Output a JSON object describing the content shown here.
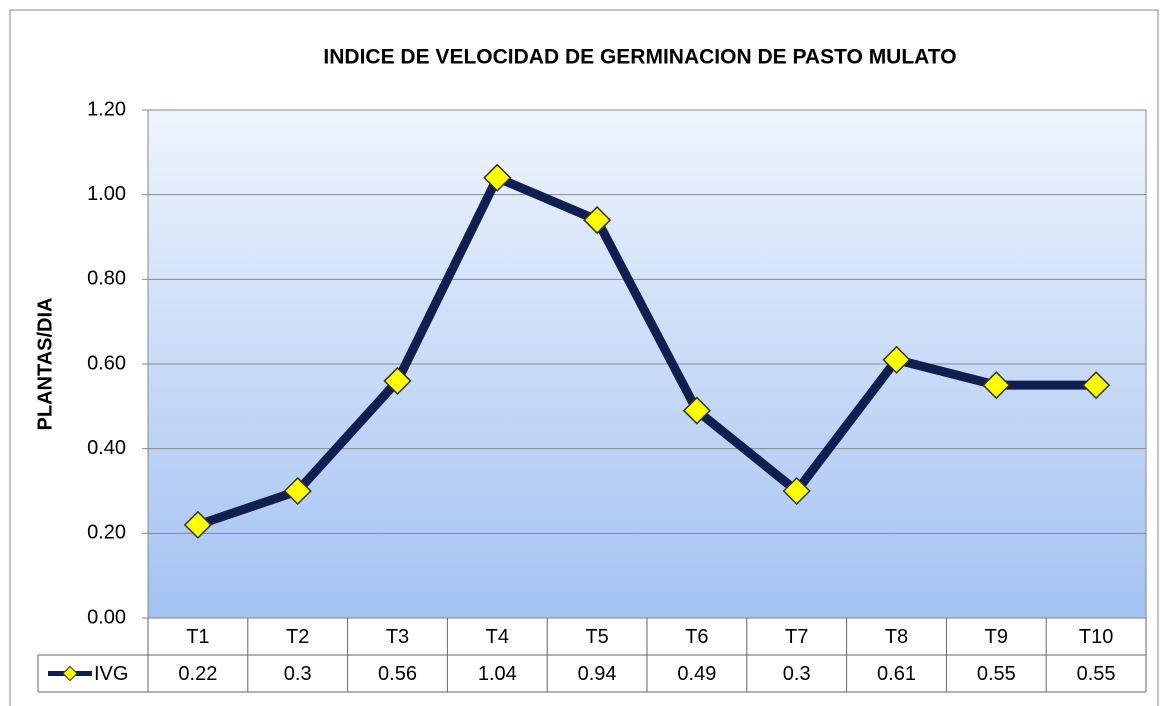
{
  "chart_data": {
    "type": "line",
    "title": "INDICE DE VELOCIDAD DE GERMINACION DE PASTO MULATO",
    "y_label": "PLANTAS/DIA",
    "categories": [
      "T1",
      "T2",
      "T3",
      "T4",
      "T5",
      "T6",
      "T7",
      "T8",
      "T9",
      "T10"
    ],
    "series": [
      {
        "name": "IVG",
        "color": "#0f1f4f",
        "marker_color": "#ffff00",
        "values": [
          0.22,
          0.3,
          0.56,
          1.04,
          0.94,
          0.49,
          0.3,
          0.61,
          0.55,
          0.55
        ]
      }
    ],
    "ylim": [
      0,
      1.2
    ],
    "yticks": [
      {
        "value": 0,
        "label": "0.00"
      },
      {
        "value": 0.2,
        "label": "0.20"
      },
      {
        "value": 0.4,
        "label": "0.40"
      },
      {
        "value": 0.6,
        "label": "0.60"
      },
      {
        "value": 0.8,
        "label": "0.80"
      },
      {
        "value": 1.0,
        "label": "1.00"
      },
      {
        "value": 1.2,
        "label": "1.20"
      }
    ],
    "grid": true,
    "data_table": true
  }
}
